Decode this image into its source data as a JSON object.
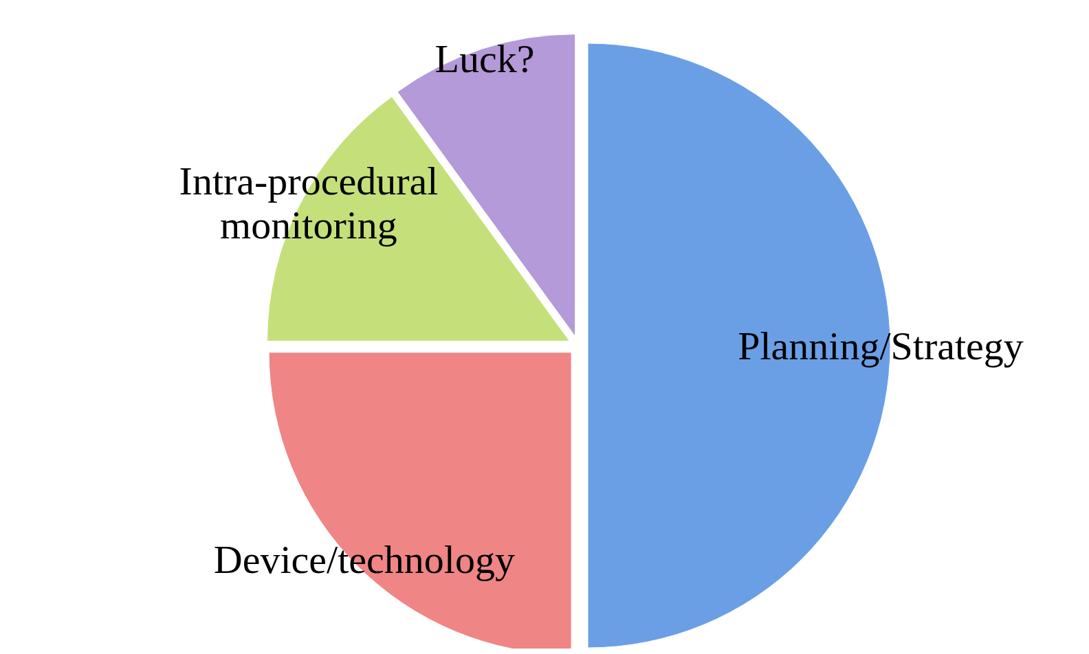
{
  "chart_data": {
    "type": "pie",
    "categories": [
      "Planning/Strategy",
      "Device/technology",
      "Intra-procedural monitoring",
      "Luck?"
    ],
    "values": [
      50,
      25,
      15,
      10
    ],
    "colors": [
      "#6a9fe6",
      "#f08585",
      "#c5e07a",
      "#b49ad8"
    ]
  }
}
